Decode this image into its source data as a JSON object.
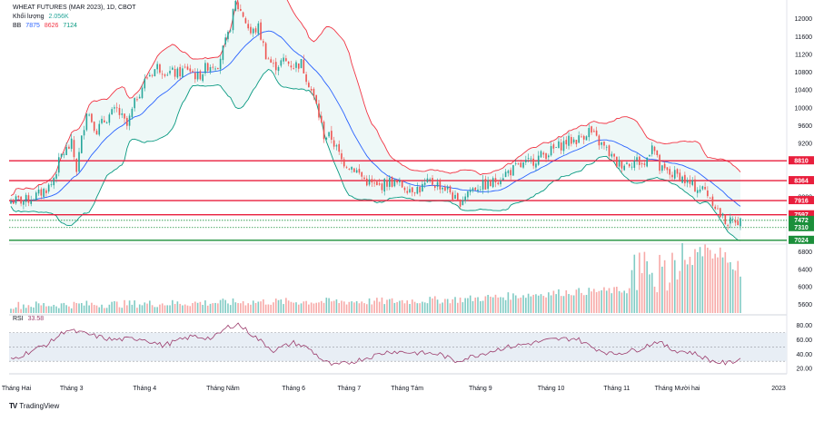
{
  "header": {
    "title": "WHEAT FUTURES (MAR 2023), 1D, CBOT",
    "volume_label": "Khối lượng",
    "volume_value": "2.056K",
    "bb_label": "BB",
    "bb_values": [
      "7875",
      "8626",
      "7124"
    ],
    "rsi_label": "RSI",
    "rsi_value": "33.58"
  },
  "brand": {
    "text": "TradingView",
    "logo": "TV"
  },
  "colors": {
    "up": "#26a69a",
    "down": "#ef5350",
    "bb_mid": "#2962ff",
    "bb_upper": "#f23645",
    "bb_lower": "#089981",
    "bb_fill": "#e0f2f1",
    "level_red": "#e91e3c",
    "level_green": "#1b8f3a",
    "rsi_line": "#9c3d6d",
    "rsi_band": "#e8eef5"
  },
  "chart_data": [
    {
      "type": "candlestick",
      "title": "WHEAT FUTURES (MAR 2023), 1D, CBOT",
      "ylim": [
        5400,
        12400
      ],
      "y_ticks": [
        12000,
        11600,
        11200,
        10800,
        10400,
        10000,
        9600,
        9200,
        8800,
        8400,
        8000
      ],
      "x_labels": [
        "Tháng Hai",
        "Tháng 3",
        "Tháng 4",
        "Tháng Năm",
        "Tháng 6",
        "Tháng 7",
        "Tháng Tám",
        "Tháng 9",
        "Tháng 10",
        "Tháng 11",
        "Tháng Mười hai",
        "2023"
      ],
      "close_anchors": [
        [
          0,
          7910
        ],
        [
          6,
          7920
        ],
        [
          11,
          8050
        ],
        [
          16,
          8280
        ],
        [
          20,
          8930
        ],
        [
          24,
          9180
        ],
        [
          26,
          8620
        ],
        [
          30,
          9960
        ],
        [
          34,
          9500
        ],
        [
          38,
          9780
        ],
        [
          42,
          9950
        ],
        [
          46,
          9580
        ],
        [
          50,
          10260
        ],
        [
          54,
          10700
        ],
        [
          58,
          10920
        ],
        [
          62,
          10810
        ],
        [
          66,
          10760
        ],
        [
          70,
          10900
        ],
        [
          74,
          10680
        ],
        [
          78,
          10950
        ],
        [
          82,
          11000
        ],
        [
          86,
          11600
        ],
        [
          89,
          12350
        ],
        [
          92,
          12080
        ],
        [
          95,
          11670
        ],
        [
          98,
          11800
        ],
        [
          101,
          11200
        ],
        [
          104,
          10920
        ],
        [
          108,
          11050
        ],
        [
          112,
          10950
        ],
        [
          115,
          11000
        ],
        [
          118,
          10560
        ],
        [
          121,
          10050
        ],
        [
          124,
          9380
        ],
        [
          127,
          9330
        ],
        [
          131,
          8820
        ],
        [
          136,
          8640
        ],
        [
          140,
          8390
        ],
        [
          145,
          8210
        ],
        [
          150,
          8350
        ],
        [
          154,
          8270
        ],
        [
          158,
          8200
        ],
        [
          162,
          8180
        ],
        [
          166,
          8330
        ],
        [
          170,
          8260
        ],
        [
          174,
          8120
        ],
        [
          177,
          7830
        ],
        [
          181,
          8130
        ],
        [
          185,
          8240
        ],
        [
          190,
          8280
        ],
        [
          195,
          8500
        ],
        [
          200,
          8640
        ],
        [
          205,
          8760
        ],
        [
          210,
          8920
        ],
        [
          215,
          9060
        ],
        [
          220,
          9240
        ],
        [
          225,
          9300
        ],
        [
          229,
          9500
        ],
        [
          232,
          9280
        ],
        [
          236,
          9050
        ],
        [
          240,
          8740
        ],
        [
          244,
          8760
        ],
        [
          248,
          8820
        ],
        [
          251,
          8700
        ],
        [
          254,
          9230
        ],
        [
          257,
          8620
        ],
        [
          261,
          8520
        ],
        [
          265,
          8470
        ],
        [
          268,
          8310
        ],
        [
          271,
          8220
        ],
        [
          275,
          8150
        ],
        [
          278,
          7920
        ],
        [
          281,
          7580
        ],
        [
          283,
          7470
        ],
        [
          285,
          7420
        ],
        [
          287,
          7500
        ],
        [
          289,
          7430
        ]
      ],
      "bollinger": {
        "length": 20,
        "upper": 7875,
        "basis": 8626,
        "lower": 7124
      },
      "levels": [
        {
          "value": 8810,
          "color": "red",
          "label": "8810"
        },
        {
          "value": 8364,
          "color": "red",
          "label": "8364"
        },
        {
          "value": 7916,
          "color": "red",
          "label": "7916"
        },
        {
          "value": 7597,
          "color": "red",
          "label": "7597"
        },
        {
          "value": 7472,
          "color": "green",
          "label": "7472"
        },
        {
          "value": 7310,
          "color": "green",
          "label": "7310"
        },
        {
          "value": 7024,
          "color": "green",
          "label": "7024"
        }
      ],
      "levels_dotted": [
        7472,
        7310
      ]
    },
    {
      "type": "bar",
      "title": "Khối lượng",
      "ylim": [
        5400,
        7000
      ],
      "y_ticks": [
        6800,
        6400,
        6000,
        5600
      ],
      "volume_anchors": [
        [
          0,
          5560
        ],
        [
          30,
          5580
        ],
        [
          60,
          5600
        ],
        [
          100,
          5640
        ],
        [
          150,
          5650
        ],
        [
          180,
          5700
        ],
        [
          200,
          5780
        ],
        [
          220,
          5860
        ],
        [
          240,
          5900
        ],
        [
          260,
          5960
        ],
        [
          265,
          6300
        ],
        [
          270,
          6700
        ],
        [
          275,
          6900
        ],
        [
          280,
          6700
        ],
        [
          285,
          6600
        ],
        [
          290,
          5450
        ]
      ],
      "volume_spikes": [
        [
          251,
          6800
        ],
        [
          254,
          6320
        ],
        [
          262,
          6780
        ],
        [
          266,
          7000
        ],
        [
          270,
          6500
        ],
        [
          274,
          6700
        ],
        [
          278,
          6650
        ],
        [
          281,
          6900
        ],
        [
          286,
          6400
        ]
      ]
    },
    {
      "type": "line",
      "title": "RSI",
      "value": 33.58,
      "ylim": [
        15,
        86
      ],
      "y_ticks": [
        80,
        60,
        40,
        20
      ],
      "band": [
        30,
        70
      ],
      "rsi_anchors": [
        [
          0,
          32
        ],
        [
          15,
          55
        ],
        [
          22,
          74
        ],
        [
          30,
          68
        ],
        [
          40,
          60
        ],
        [
          52,
          62
        ],
        [
          60,
          52
        ],
        [
          72,
          65
        ],
        [
          80,
          62
        ],
        [
          86,
          78
        ],
        [
          90,
          82
        ],
        [
          96,
          66
        ],
        [
          104,
          45
        ],
        [
          112,
          56
        ],
        [
          118,
          48
        ],
        [
          124,
          30
        ],
        [
          128,
          24
        ],
        [
          134,
          28
        ],
        [
          142,
          36
        ],
        [
          150,
          44
        ],
        [
          160,
          42
        ],
        [
          170,
          40
        ],
        [
          176,
          30
        ],
        [
          184,
          38
        ],
        [
          194,
          48
        ],
        [
          204,
          54
        ],
        [
          214,
          60
        ],
        [
          224,
          62
        ],
        [
          230,
          50
        ],
        [
          238,
          40
        ],
        [
          248,
          46
        ],
        [
          256,
          58
        ],
        [
          262,
          46
        ],
        [
          270,
          42
        ],
        [
          278,
          30
        ],
        [
          284,
          27
        ],
        [
          289,
          33.58
        ]
      ]
    }
  ]
}
